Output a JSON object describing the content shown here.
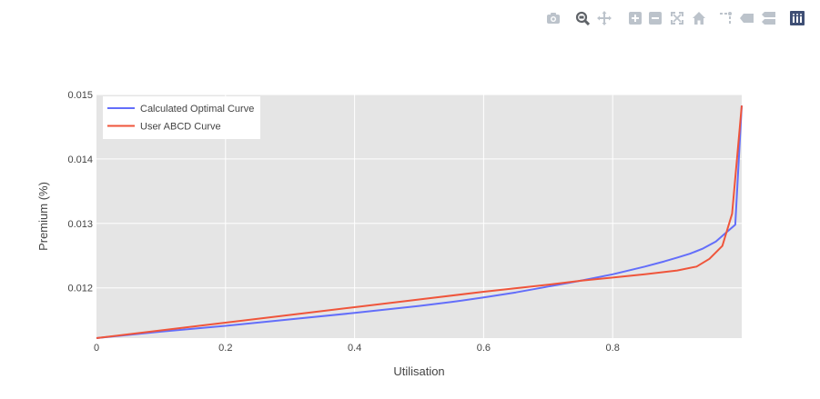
{
  "toolbar": {
    "icons": [
      "camera-icon",
      "zoom-icon",
      "pan-icon",
      "zoom-in-icon",
      "zoom-out-icon",
      "autoscale-icon",
      "home-icon",
      "spike-lines-icon",
      "hover-closest-icon",
      "hover-compare-icon",
      "plotly-logo-icon"
    ],
    "active": "zoom-icon",
    "icon_color": "#bcc3cb",
    "active_color": "#5f6368",
    "logo_color": "#3f4f75"
  },
  "chart_data": {
    "type": "line",
    "title": "",
    "xlabel": "Utilisation",
    "ylabel": "Premium (%)",
    "xlim": [
      0,
      1.0
    ],
    "ylim": [
      0.01122,
      0.015
    ],
    "xticks": [
      0,
      0.2,
      0.4,
      0.6,
      0.8
    ],
    "xtick_labels": [
      "0",
      "0.2",
      "0.4",
      "0.6",
      "0.8"
    ],
    "yticks": [
      0.012,
      0.013,
      0.014,
      0.015
    ],
    "ytick_labels": [
      "0.012",
      "0.013",
      "0.014",
      "0.015"
    ],
    "grid": true,
    "legend_position": "top-left",
    "plot_bgcolor": "#e5e5e5",
    "series": [
      {
        "name": "Calculated Optimal Curve",
        "color": "#636efa",
        "x": [
          0,
          0.1,
          0.2,
          0.3,
          0.4,
          0.5,
          0.55,
          0.6,
          0.65,
          0.7,
          0.75,
          0.8,
          0.85,
          0.88,
          0.9,
          0.92,
          0.94,
          0.96,
          0.975,
          0.99,
          1.0
        ],
        "y": [
          0.01122,
          0.01132,
          0.01141,
          0.01151,
          0.01161,
          0.01172,
          0.01178,
          0.01185,
          0.01193,
          0.01202,
          0.01211,
          0.01221,
          0.01233,
          0.01241,
          0.01247,
          0.01253,
          0.01261,
          0.01272,
          0.01285,
          0.01298,
          0.01483
        ]
      },
      {
        "name": "User ABCD Curve",
        "color": "#ef553b",
        "x": [
          0,
          0.1,
          0.2,
          0.3,
          0.4,
          0.5,
          0.6,
          0.7,
          0.75,
          0.8,
          0.85,
          0.9,
          0.93,
          0.95,
          0.97,
          0.985,
          1.0
        ],
        "y": [
          0.01122,
          0.01134,
          0.01146,
          0.01158,
          0.0117,
          0.01182,
          0.01194,
          0.01205,
          0.01211,
          0.01216,
          0.01221,
          0.01227,
          0.01233,
          0.01245,
          0.01265,
          0.01315,
          0.01483
        ]
      }
    ]
  }
}
